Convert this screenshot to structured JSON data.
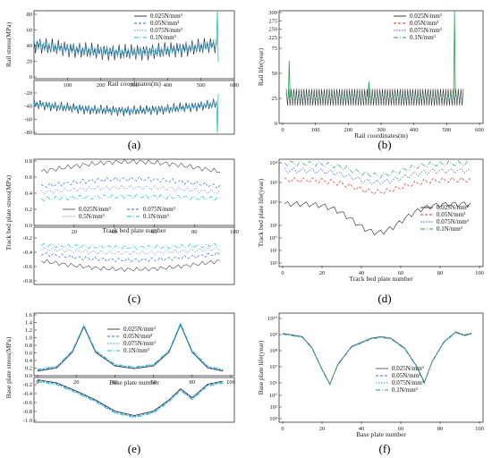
{
  "figure": {
    "panel_labels": [
      "(a)",
      "(b)",
      "(c)",
      "(d)",
      "(e)",
      "(f)"
    ]
  },
  "chart_data": [
    {
      "id": "a",
      "type": "line",
      "xlabel": "Rail coordinates(m)",
      "ylabel": "Rail stress(MPa)",
      "xlim": [
        0,
        600
      ],
      "x_ticks": [
        "100",
        "200",
        "300",
        "400",
        "500",
        "600"
      ],
      "upper_ylim": [
        0,
        80
      ],
      "upper_ticks": [
        "0",
        "20",
        "40",
        "60",
        "80"
      ],
      "lower_ylim": [
        -80,
        0
      ],
      "lower_ticks": [
        "-20",
        "-40",
        "-60",
        "-80"
      ],
      "legend": [
        "0.025N/mm³",
        "0.05N/mm³",
        "0.075N/mm³",
        "0.1N/mm³"
      ],
      "colors": [
        "#222222",
        "#2f6fd6",
        "#3aa0d8",
        "#19c2c2"
      ],
      "series_shape": {
        "upper_mean_ends": 40,
        "upper_mean_mid": 30,
        "upper_oscillation": 10,
        "lower_mean_ends": -35,
        "lower_mean_mid": -45,
        "lower_oscillation": 8,
        "end_spike": [
          560,
          80
        ]
      }
    },
    {
      "id": "b",
      "type": "line",
      "xlabel": "Rail coordinates(m)",
      "ylabel": "Rail life(year)",
      "xlim": [
        0,
        600
      ],
      "x_ticks": [
        "0",
        "100",
        "200",
        "300",
        "400",
        "500",
        "600"
      ],
      "y_ticks_upper": [
        "300",
        "275",
        "250",
        "225"
      ],
      "y_ticks_lower": [
        "75",
        "50",
        "25",
        "0"
      ],
      "legend": [
        "0.025N/mm³",
        "0.05N/mm³",
        "0.075N/mm³",
        "0.1N/mm³"
      ],
      "colors": [
        "#222222",
        "#e03030",
        "#3a5fcf",
        "#2aa05a"
      ],
      "series_shape": {
        "baseline": 25,
        "dip_min": 18,
        "spikes": [
          [
            10,
            60
          ],
          [
            280,
            40
          ],
          [
            570,
            300
          ]
        ]
      }
    },
    {
      "id": "c",
      "type": "line",
      "xlabel": "Track bed plate number",
      "ylabel": "Track bed plate stress(MPa)",
      "xlim": [
        0,
        100
      ],
      "x_ticks": [
        "20",
        "40",
        "60",
        "80",
        "100"
      ],
      "upper_ticks": [
        "0.8",
        "0.6",
        "0.4",
        "0.2",
        "0.0"
      ],
      "lower_ticks": [
        "-0.2",
        "-0.4",
        "-0.6",
        "-0.8"
      ],
      "legend": [
        "0.025N/mm³",
        "0.075N/mm³",
        "0.5N/mm³",
        "0.1N/mm³"
      ],
      "colors": [
        "#555555",
        "#2f6fd6",
        "#6a8fe0",
        "#19c2c2"
      ],
      "series_levels_upper": [
        0.65,
        0.47,
        0.4,
        0.32
      ],
      "series_levels_lower": [
        -0.55,
        -0.45,
        -0.38,
        -0.33
      ]
    },
    {
      "id": "d",
      "type": "line",
      "xlabel": "Track bed plate number",
      "ylabel": "Track bed plate life(year)",
      "xlim": [
        0,
        100
      ],
      "x_ticks": [
        "0",
        "20",
        "40",
        "60",
        "80",
        "100"
      ],
      "y_ticks": [
        "10⁴",
        "10³",
        "10²",
        "10¹",
        "10⁰",
        "10¹",
        "10²"
      ],
      "legend": [
        "0.025N/mm³",
        "0.05N/mm³",
        "0.075N/mm³",
        "0.1N/mm³"
      ],
      "colors": [
        "#333333",
        "#e03030",
        "#3a5fcf",
        "#2aa05a"
      ],
      "series_levels_log": [
        0.3,
        1.3,
        1.7,
        2.0
      ]
    },
    {
      "id": "e",
      "type": "line",
      "xlabel": "Base plate number",
      "ylabel": "Base plate stress(MPa)",
      "xlim": [
        0,
        100
      ],
      "x_ticks": [
        "0",
        "20",
        "40",
        "60",
        "80",
        "100"
      ],
      "upper_ticks": [
        "1.6",
        "1.4",
        "1.2",
        "1.0",
        "0.8",
        "0.6",
        "0.4",
        "0.2",
        "0.0"
      ],
      "lower_ticks": [
        "-0.2",
        "-0.4",
        "-0.6",
        "-0.8",
        "-1.0"
      ],
      "legend": [
        "0.025N/mm³",
        "0.05N/mm³",
        "0.075N/mm³",
        "0.1N/mm³"
      ],
      "colors": [
        "#333333",
        "#2f6fd6",
        "#3aa0d8",
        "#19c2c2"
      ],
      "upper_points": [
        [
          0,
          0.12
        ],
        [
          10,
          0.2
        ],
        [
          18,
          0.6
        ],
        [
          24,
          1.25
        ],
        [
          30,
          0.6
        ],
        [
          40,
          0.25
        ],
        [
          50,
          0.18
        ],
        [
          60,
          0.25
        ],
        [
          68,
          0.6
        ],
        [
          74,
          1.3
        ],
        [
          80,
          0.6
        ],
        [
          88,
          0.2
        ],
        [
          96,
          0.12
        ]
      ],
      "lower_points": [
        [
          0,
          -0.05
        ],
        [
          10,
          -0.12
        ],
        [
          20,
          -0.3
        ],
        [
          30,
          -0.5
        ],
        [
          40,
          -0.75
        ],
        [
          50,
          -0.85
        ],
        [
          60,
          -0.75
        ],
        [
          68,
          -0.5
        ],
        [
          74,
          -0.25
        ],
        [
          80,
          -0.45
        ],
        [
          88,
          -0.15
        ],
        [
          96,
          -0.08
        ]
      ]
    },
    {
      "id": "f",
      "type": "line",
      "xlabel": "Base plate number",
      "ylabel": "Base plate life(year)",
      "xlim": [
        0,
        100
      ],
      "x_ticks": [
        "0",
        "20",
        "40",
        "60",
        "80",
        "100"
      ],
      "y_ticks": [
        "10¹⁰",
        "10⁹",
        "10⁸",
        "10⁷",
        "10⁶",
        "10⁰",
        "10²",
        "10⁴"
      ],
      "legend": [
        "0.025N/mm³",
        "0.05N/mm³",
        "0.075N/mm³",
        "0.1N/mm³"
      ],
      "colors": [
        "#555555",
        "#2f6fd6",
        "#3aa0d8",
        "#2aa05a"
      ],
      "points_log": [
        [
          0,
          9.2
        ],
        [
          5,
          9.1
        ],
        [
          10,
          9.0
        ],
        [
          15,
          8.3
        ],
        [
          20,
          7.0
        ],
        [
          24,
          6.1
        ],
        [
          28,
          7.3
        ],
        [
          35,
          8.4
        ],
        [
          45,
          8.9
        ],
        [
          50,
          9.0
        ],
        [
          55,
          8.9
        ],
        [
          62,
          8.3
        ],
        [
          68,
          7.2
        ],
        [
          72,
          6.2
        ],
        [
          76,
          7.5
        ],
        [
          82,
          8.7
        ],
        [
          88,
          9.3
        ],
        [
          92,
          9.1
        ],
        [
          96,
          9.2
        ]
      ]
    }
  ]
}
